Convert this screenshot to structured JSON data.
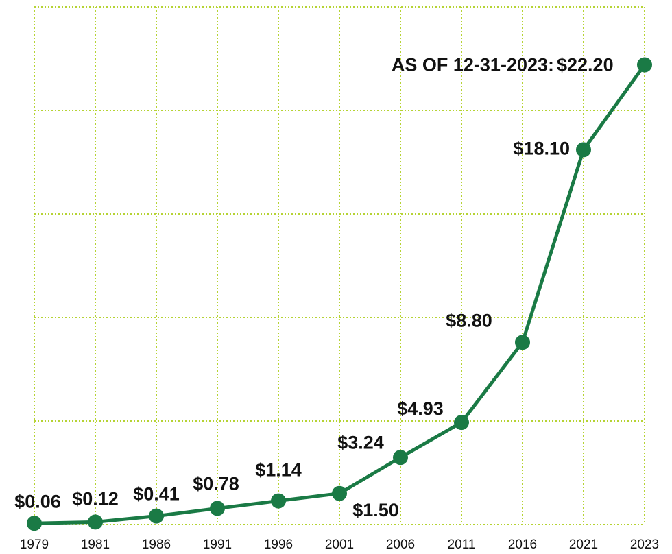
{
  "chart_data": {
    "type": "line",
    "categories": [
      "1979",
      "1981",
      "1986",
      "1991",
      "1996",
      "2001",
      "2006",
      "2011",
      "2016",
      "2021",
      "2023"
    ],
    "values": [
      0.06,
      0.12,
      0.41,
      0.78,
      1.14,
      1.5,
      3.24,
      4.93,
      8.8,
      18.1,
      22.2
    ],
    "value_labels": [
      "$0.06",
      "$0.12",
      "$0.41",
      "$0.78",
      "$1.14",
      "$1.50",
      "$3.24",
      "$4.93",
      "$8.80",
      "$18.10",
      "$22.20"
    ],
    "annotation": "AS OF 12-31-2023:",
    "color": "#1a7a45",
    "grid_color": "#b6d334",
    "ylim": [
      0,
      25
    ],
    "yticks": [
      0,
      5,
      10,
      15,
      20,
      25
    ],
    "grid": true
  }
}
